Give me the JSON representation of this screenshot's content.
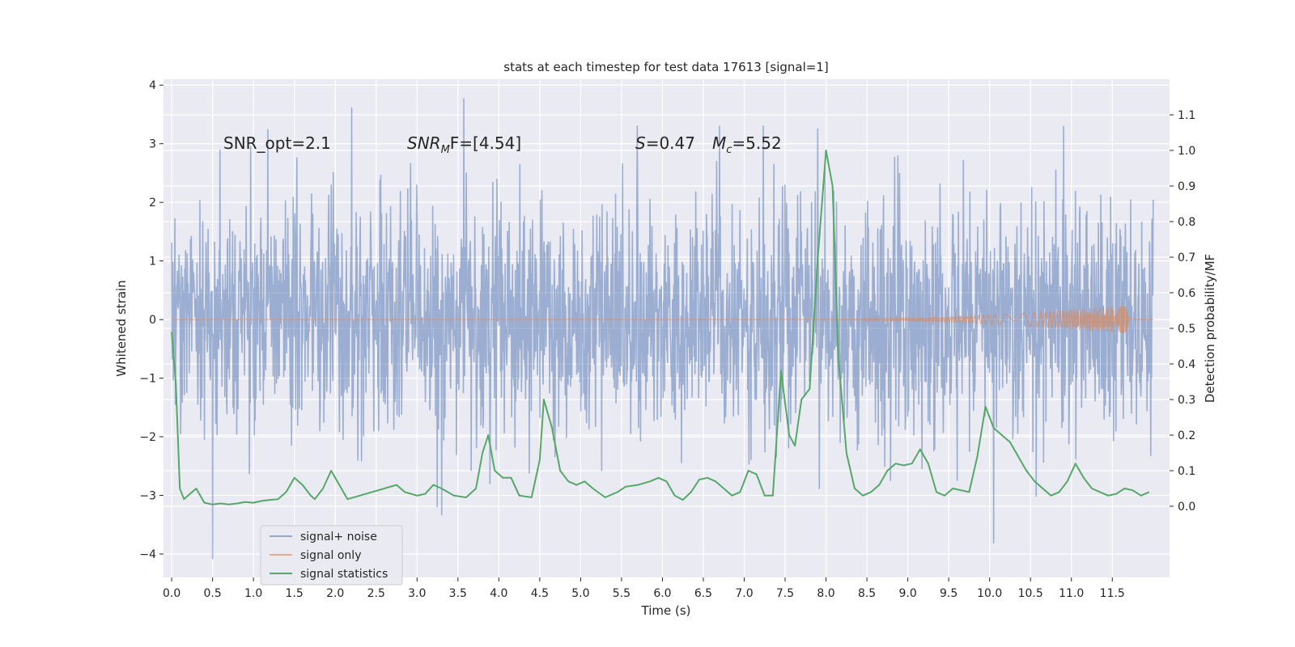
{
  "chart_data": {
    "type": "line",
    "title": "stats at each timestep for test data 17613 [signal=1]",
    "xlabel": "Time (s)",
    "ylabel": "Whitened strain",
    "y2label": "Detection probability/MF",
    "xlim": [
      -0.1,
      12.2
    ],
    "ylim": [
      -4.4,
      4.1
    ],
    "y2lim": [
      -0.2,
      1.2
    ],
    "xticks": [
      0.0,
      0.5,
      1.0,
      1.5,
      2.0,
      2.5,
      3.0,
      3.5,
      4.0,
      4.5,
      5.0,
      5.5,
      6.0,
      6.5,
      7.0,
      7.5,
      8.0,
      8.5,
      9.0,
      9.5,
      10.0,
      10.5,
      11.0,
      11.5
    ],
    "xtick_labels": [
      "0.0",
      "0.5",
      "1.0",
      "1.5",
      "2.0",
      "2.5",
      "3.0",
      "3.5",
      "4.0",
      "4.5",
      "5.0",
      "5.5",
      "6.0",
      "6.5",
      "7.0",
      "7.5",
      "8.0",
      "8.5",
      "9.0",
      "9.5",
      "10.0",
      "10.5",
      "11.0",
      "11.5"
    ],
    "yticks": [
      -4,
      -3,
      -2,
      -1,
      0,
      1,
      2,
      3,
      4
    ],
    "ytick_labels": [
      "−4",
      "−3",
      "−2",
      "−1",
      "0",
      "1",
      "2",
      "3",
      "4"
    ],
    "y2ticks": [
      0.0,
      0.1,
      0.2,
      0.3,
      0.4,
      0.5,
      0.6,
      0.7,
      0.8,
      0.9,
      1.0,
      1.1
    ],
    "y2tick_labels": [
      "0.0",
      "0.1",
      "0.2",
      "0.3",
      "0.4",
      "0.5",
      "0.6",
      "0.7",
      "0.8",
      "0.9",
      "1.0",
      "1.1"
    ],
    "annotations": {
      "snr_opt": "SNR_opt=2.1",
      "snr_mf_main": "SNR",
      "snr_mf_sub": "M",
      "snr_mf_rest": "F=[4.54]",
      "s_sym": "S",
      "s_val": "=0.47",
      "mc_main": "M",
      "mc_sub": "c",
      "mc_val": "=5.52"
    },
    "noise_series": {
      "name": "signal+ noise",
      "color": "#4c72b0",
      "t_start": 0.0,
      "t_end": 12.0,
      "approx_sigma": 1.0,
      "peaks": [
        [
          0.5,
          -4.08
        ],
        [
          2.2,
          3.61
        ],
        [
          3.57,
          3.77
        ],
        [
          10.05,
          -3.81
        ],
        [
          7.9,
          3.25
        ],
        [
          3.3,
          -3.33
        ]
      ]
    },
    "signal_series": {
      "name": "signal only",
      "color": "#dd8452",
      "chirp_start": 7.5,
      "chirp_end": 11.7,
      "max_amplitude": 0.25
    },
    "stats_series": {
      "name": "signal statistics",
      "color": "#55a868",
      "t": [
        0.0,
        0.05,
        0.1,
        0.15,
        0.2,
        0.3,
        0.4,
        0.5,
        0.6,
        0.7,
        0.8,
        0.9,
        1.0,
        1.1,
        1.2,
        1.3,
        1.4,
        1.5,
        1.6,
        1.7,
        1.75,
        1.85,
        1.95,
        2.05,
        2.15,
        2.3,
        2.45,
        2.6,
        2.75,
        2.85,
        3.0,
        3.1,
        3.2,
        3.3,
        3.45,
        3.6,
        3.72,
        3.8,
        3.87,
        3.95,
        4.05,
        4.15,
        4.25,
        4.4,
        4.5,
        4.55,
        4.65,
        4.75,
        4.85,
        4.95,
        5.05,
        5.15,
        5.3,
        5.45,
        5.55,
        5.7,
        5.85,
        5.95,
        6.05,
        6.15,
        6.25,
        6.35,
        6.45,
        6.55,
        6.65,
        6.75,
        6.85,
        6.95,
        7.05,
        7.15,
        7.25,
        7.35,
        7.45,
        7.55,
        7.62,
        7.7,
        7.8,
        7.9,
        8.0,
        8.08,
        8.15,
        8.25,
        8.35,
        8.45,
        8.55,
        8.65,
        8.75,
        8.85,
        8.95,
        9.05,
        9.15,
        9.25,
        9.35,
        9.45,
        9.55,
        9.65,
        9.75,
        9.85,
        9.95,
        10.05,
        10.15,
        10.25,
        10.35,
        10.45,
        10.55,
        10.65,
        10.75,
        10.85,
        10.95,
        11.05,
        11.15,
        11.25,
        11.35,
        11.45,
        11.55,
        11.65,
        11.75,
        11.85,
        11.95
      ],
      "values": [
        0.49,
        0.35,
        0.05,
        0.02,
        0.03,
        0.05,
        0.01,
        0.005,
        0.008,
        0.005,
        0.008,
        0.012,
        0.01,
        0.015,
        0.018,
        0.02,
        0.04,
        0.08,
        0.06,
        0.03,
        0.02,
        0.05,
        0.1,
        0.06,
        0.02,
        0.03,
        0.04,
        0.05,
        0.06,
        0.04,
        0.03,
        0.035,
        0.06,
        0.05,
        0.03,
        0.025,
        0.05,
        0.15,
        0.2,
        0.1,
        0.08,
        0.08,
        0.03,
        0.025,
        0.13,
        0.3,
        0.22,
        0.1,
        0.07,
        0.06,
        0.07,
        0.05,
        0.025,
        0.04,
        0.055,
        0.06,
        0.07,
        0.08,
        0.07,
        0.03,
        0.018,
        0.04,
        0.075,
        0.08,
        0.07,
        0.05,
        0.03,
        0.04,
        0.1,
        0.09,
        0.03,
        0.03,
        0.38,
        0.2,
        0.17,
        0.3,
        0.33,
        0.7,
        1.0,
        0.9,
        0.42,
        0.15,
        0.05,
        0.03,
        0.04,
        0.06,
        0.1,
        0.12,
        0.115,
        0.12,
        0.16,
        0.12,
        0.04,
        0.03,
        0.05,
        0.045,
        0.04,
        0.14,
        0.28,
        0.22,
        0.2,
        0.18,
        0.14,
        0.1,
        0.07,
        0.05,
        0.03,
        0.04,
        0.07,
        0.12,
        0.08,
        0.05,
        0.04,
        0.03,
        0.035,
        0.05,
        0.045,
        0.03,
        0.04
      ]
    },
    "legend": {
      "position": "lower-left",
      "entries": [
        "signal+ noise",
        "signal only",
        "signal statistics"
      ]
    },
    "grid": true,
    "background": "#eaeaf2"
  }
}
